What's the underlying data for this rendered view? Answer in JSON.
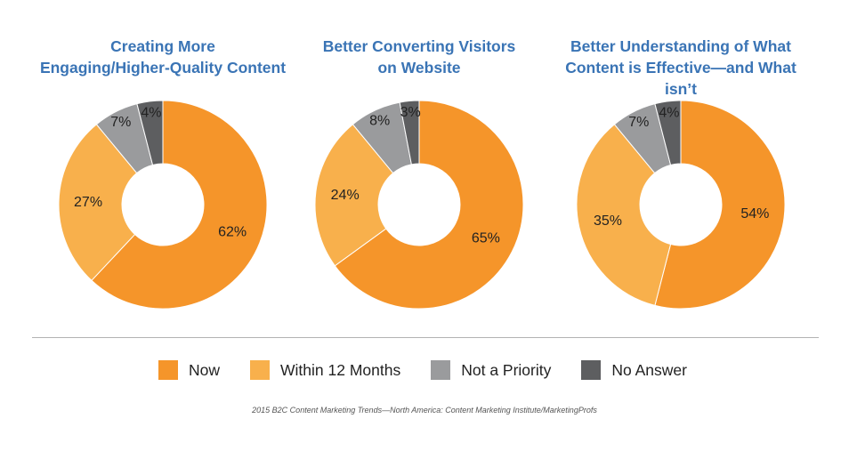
{
  "chart_data": [
    {
      "type": "pie",
      "variant": "donut",
      "title": "Creating More\nEngaging/Higher-Quality Content",
      "slices": [
        {
          "label": "Now",
          "value": 62,
          "text": "62%"
        },
        {
          "label": "Within 12 Months",
          "value": 27,
          "text": "27%"
        },
        {
          "label": "Not a Priority",
          "value": 7,
          "text": "7%"
        },
        {
          "label": "No Answer",
          "value": 4,
          "text": "4%"
        }
      ]
    },
    {
      "type": "pie",
      "variant": "donut",
      "title": "Better Converting Visitors\non Website",
      "slices": [
        {
          "label": "Now",
          "value": 65,
          "text": "65%"
        },
        {
          "label": "Within 12 Months",
          "value": 24,
          "text": "24%"
        },
        {
          "label": "Not a Priority",
          "value": 8,
          "text": "8%"
        },
        {
          "label": "No Answer",
          "value": 3,
          "text": "3%"
        }
      ]
    },
    {
      "type": "pie",
      "variant": "donut",
      "title": "Better Understanding of What\nContent is Effective—and What isn’t",
      "slices": [
        {
          "label": "Now",
          "value": 54,
          "text": "54%"
        },
        {
          "label": "Within 12 Months",
          "value": 35,
          "text": "35%"
        },
        {
          "label": "Not a Priority",
          "value": 7,
          "text": "7%"
        },
        {
          "label": "No Answer",
          "value": 4,
          "text": "4%"
        }
      ]
    }
  ],
  "legend": {
    "placement": "bottom",
    "items": [
      {
        "label": "Now",
        "color": "#f5952a"
      },
      {
        "label": "Within 12 Months",
        "color": "#f8b04c"
      },
      {
        "label": "Not a Priority",
        "color": "#9a9b9d"
      },
      {
        "label": "No Answer",
        "color": "#5d5e60"
      }
    ]
  },
  "source": "2015 B2C Content Marketing Trends—North America: Content Marketing Institute/MarketingProfs"
}
